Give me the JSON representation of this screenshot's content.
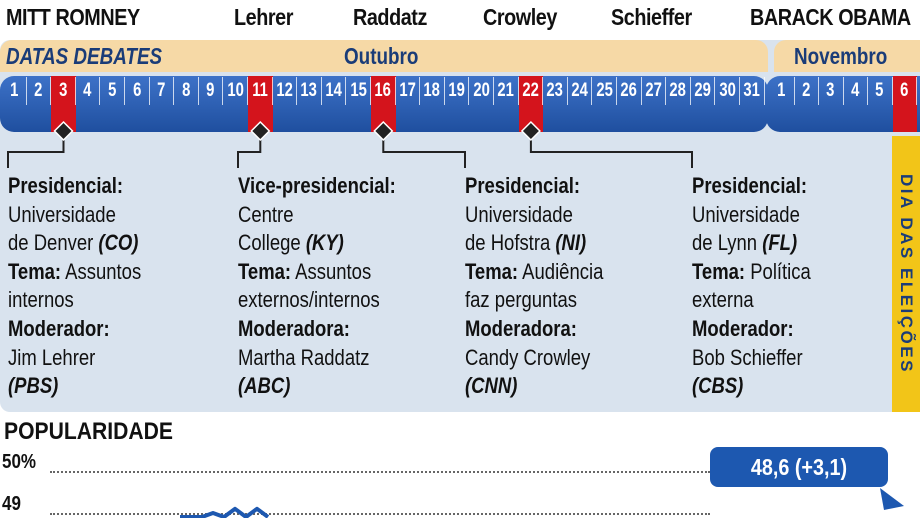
{
  "header": {
    "candidates": [
      "MITT ROMNEY",
      "Lehrer",
      "Raddatz",
      "Crowley",
      "Schieffer",
      "BARACK OBAMA"
    ]
  },
  "calendar": {
    "section_label": "DATAS DEBATES",
    "months": [
      {
        "name": "Outubro",
        "days": [
          "1",
          "2",
          "3",
          "4",
          "5",
          "6",
          "7",
          "8",
          "9",
          "10",
          "11",
          "12",
          "13",
          "14",
          "15",
          "16",
          "17",
          "18",
          "19",
          "20",
          "21",
          "22",
          "23",
          "24",
          "25",
          "26",
          "27",
          "28",
          "29",
          "30",
          "31"
        ]
      },
      {
        "name": "Novembro",
        "days": [
          "1",
          "2",
          "3",
          "4",
          "5",
          "6"
        ]
      }
    ],
    "highlighted_october": [
      "3",
      "11",
      "16",
      "22"
    ],
    "highlighted_november": [
      "6"
    ],
    "election_day_label": "DIA DAS ELEIÇÕES"
  },
  "debates": [
    {
      "type": "Presidencial:",
      "venue_1": "Universidade",
      "venue_2": "de Denver",
      "state": "(CO)",
      "theme_label": "Tema:",
      "theme_1": "Assuntos",
      "theme_2": "internos",
      "moderator_label": "Moderador:",
      "moderator": "Jim Lehrer",
      "network": "(PBS)"
    },
    {
      "type": "Vice-presidencial:",
      "venue_1": "Centre",
      "venue_2": "College",
      "state": "(KY)",
      "theme_label": "Tema:",
      "theme_1": "Assuntos",
      "theme_2": "externos/internos",
      "moderator_label": "Moderadora:",
      "moderator": "Martha Raddatz",
      "network": "(ABC)"
    },
    {
      "type": "Presidencial:",
      "venue_1": "Universidade",
      "venue_2": "de Hofstra",
      "state": "(NI)",
      "theme_label": "Tema:",
      "theme_1": "Audiência",
      "theme_2": "faz perguntas",
      "moderator_label": "Moderadora:",
      "moderator": "Candy Crowley",
      "network": "(CNN)"
    },
    {
      "type": "Presidencial:",
      "venue_1": "Universidade",
      "venue_2": "de Lynn",
      "state": "(FL)",
      "theme_label": "Tema:",
      "theme_1": "Política",
      "theme_2": "externa",
      "moderator_label": "Moderador:",
      "moderator": "Bob Schieffer",
      "network": "(CBS)"
    }
  ],
  "chart_data": {
    "type": "line",
    "title": "POPULARIDADE",
    "ylabel": "",
    "xlabel": "",
    "ytick_labels": [
      "50%",
      "49"
    ],
    "ylim": [
      48.6,
      50
    ],
    "series": [
      {
        "values": [
          48.7,
          48.9,
          48.8,
          49.0,
          48.8,
          49.1,
          48.9,
          49.1,
          48.7
        ]
      }
    ],
    "annotation": "48,6 (+3,1)",
    "colors": {
      "line": "#1d58b0",
      "callout": "#1d58b0"
    }
  },
  "colors": {
    "strip_blue": "#2b5fb3",
    "highlight_red": "#d4141c",
    "month_band": "#f6d9a6",
    "panel_bg": "#d9e3ee",
    "election_yellow": "#f2c518",
    "text_blue": "#1a3c78"
  }
}
